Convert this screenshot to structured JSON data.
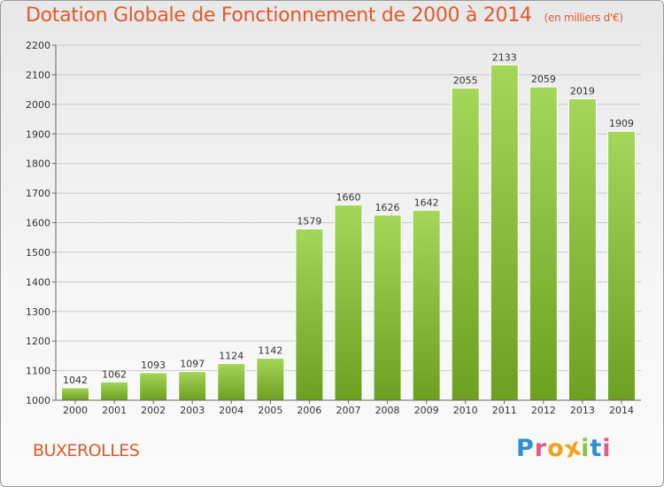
{
  "header": {
    "title": "Dotation Globale de Fonctionnement de 2000 à 2014",
    "subtitle": "(en milliers d'€)"
  },
  "footer": {
    "commune": "BUXEROLLES",
    "logo_letters": [
      "P",
      "r",
      "o",
      "x",
      "i",
      "t",
      "i"
    ],
    "logo_colors": [
      "#2e8fd6",
      "#e05a8a",
      "#f2a11c",
      "#f2a11c",
      "#8ac43f",
      "#2e8fd6",
      "#e05a8a"
    ]
  },
  "colors": {
    "title": "#e2582a",
    "bar_light": "#a4d65a",
    "bar_dark": "#6da020",
    "grid": "#c8c8c8"
  },
  "chart_data": {
    "type": "bar",
    "title": "Dotation Globale de Fonctionnement de 2000 à 2014",
    "subtitle": "(en milliers d'€)",
    "categories": [
      "2000",
      "2001",
      "2002",
      "2003",
      "2004",
      "2005",
      "2006",
      "2007",
      "2008",
      "2009",
      "2010",
      "2011",
      "2012",
      "2013",
      "2014"
    ],
    "values": [
      1042,
      1062,
      1093,
      1097,
      1124,
      1142,
      1579,
      1660,
      1626,
      1642,
      2055,
      2133,
      2059,
      2019,
      1909
    ],
    "ylim": [
      1000,
      2200
    ],
    "yticks": [
      1000,
      1100,
      1200,
      1300,
      1400,
      1500,
      1600,
      1700,
      1800,
      1900,
      2000,
      2100,
      2200
    ],
    "grid": true,
    "data_labels": true
  }
}
